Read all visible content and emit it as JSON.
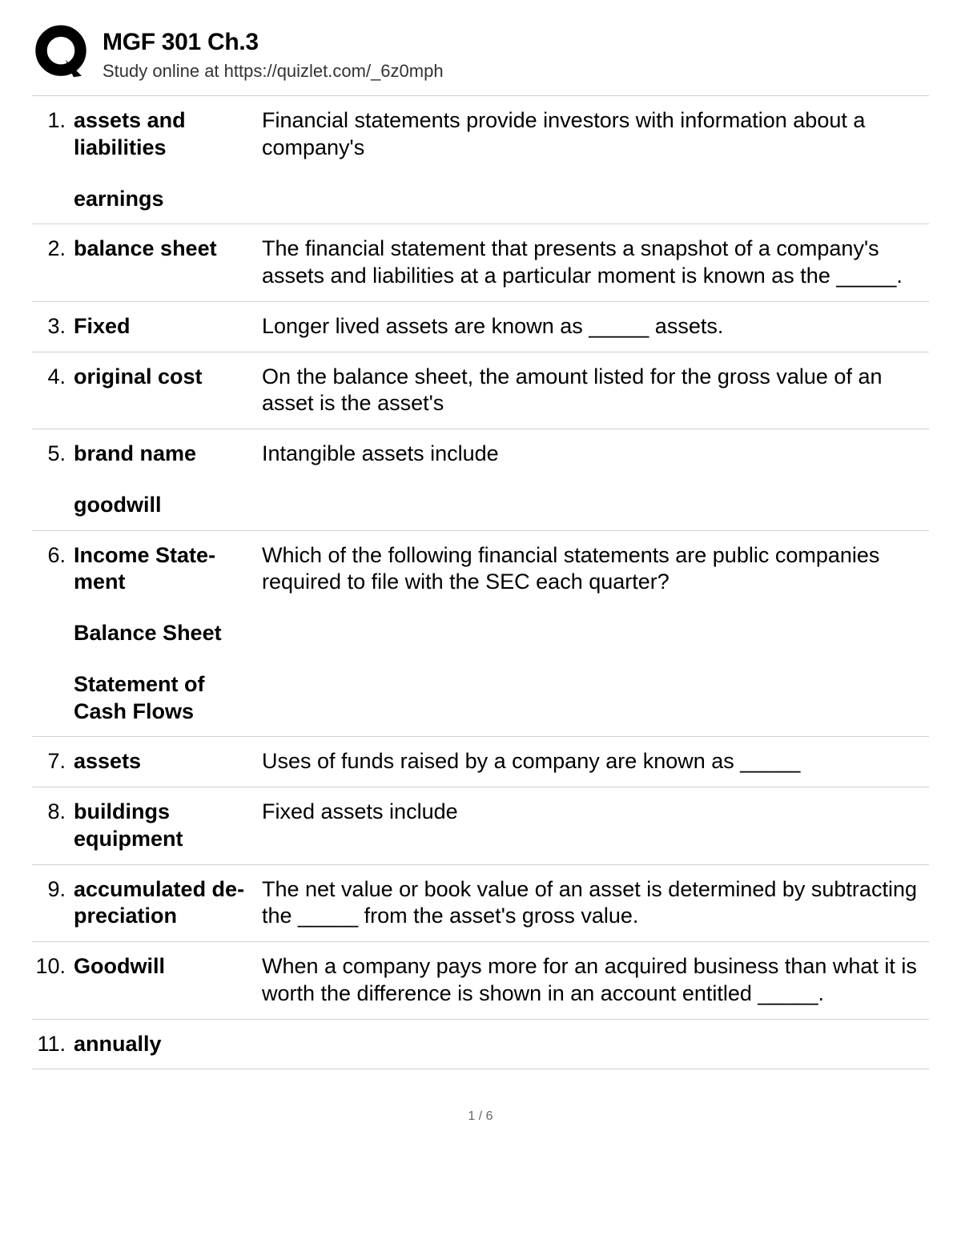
{
  "header": {
    "title": "MGF 301 Ch.3",
    "subtitle": "Study online at https://quizlet.com/_6z0mph"
  },
  "items": [
    {
      "num": "1.",
      "term": "assets and liabili­ties",
      "term_extra": [
        "earnings"
      ],
      "def": "Financial statements provide investors with information about a company's"
    },
    {
      "num": "2.",
      "term": "balance sheet",
      "term_extra": [],
      "def": "The financial statement that presents a snapshot of a company's assets and liabilities at a particular moment is known as the _____."
    },
    {
      "num": "3.",
      "term": "Fixed",
      "term_extra": [],
      "def": "Longer lived assets are known as _____ assets."
    },
    {
      "num": "4.",
      "term": "original cost",
      "term_extra": [],
      "def": "On the balance sheet, the amount listed for the gross value of an asset is the asset's"
    },
    {
      "num": "5.",
      "term": "brand name",
      "term_extra": [
        "goodwill"
      ],
      "def": "Intangible assets include"
    },
    {
      "num": "6.",
      "term": "Income State­ment",
      "term_extra": [
        "Balance Sheet",
        "Statement of Cash Flows"
      ],
      "def": "Which of the following financial statements are public com­panies required to file with the SEC each quarter?"
    },
    {
      "num": "7.",
      "term": "assets",
      "term_extra": [],
      "def": "Uses of funds raised by a company are known as _____"
    },
    {
      "num": "8.",
      "term": "buildings equipment",
      "term_extra": [],
      "def": "Fixed assets include"
    },
    {
      "num": "9.",
      "term": "accumulated de­preciation",
      "term_extra": [],
      "def": "The net value or book value of an asset is determined by subtracting the _____ from the asset's gross value."
    },
    {
      "num": "10.",
      "term": "Goodwill",
      "term_extra": [],
      "def": "When a company pays more for an acquired business than what it is worth the difference is shown in an account entitled _____."
    },
    {
      "num": "11.",
      "term": "annually",
      "term_extra": [],
      "def": ""
    }
  ],
  "footer": {
    "page_indicator": "1 / 6"
  },
  "style": {
    "background_color": "#ffffff",
    "text_color": "#000000",
    "border_color": "#d0d0d8",
    "title_fontsize": 30,
    "subtitle_fontsize": 22,
    "body_fontsize": 27,
    "footer_fontsize": 16,
    "footer_color": "#666666",
    "logo_color": "#000000"
  }
}
